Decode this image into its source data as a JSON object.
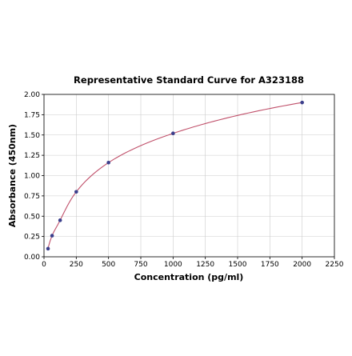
{
  "chart_data": {
    "type": "scatter",
    "title": "Representative Standard Curve for A323188",
    "xlabel": "Concentration (pg/ml)",
    "ylabel": "Absorbance (450nm)",
    "xlim": [
      0,
      2250
    ],
    "ylim": [
      0,
      2.0
    ],
    "xticks": [
      "0",
      "250",
      "500",
      "750",
      "1000",
      "1250",
      "1500",
      "1750",
      "2000",
      "2250"
    ],
    "yticks": [
      "0.00",
      "0.25",
      "0.50",
      "0.75",
      "1.00",
      "1.25",
      "1.50",
      "1.75",
      "2.00"
    ],
    "grid": true,
    "series": [
      {
        "x": [
          31.25,
          62.5,
          125,
          250,
          500,
          1000,
          2000
        ],
        "y": [
          0.1,
          0.26,
          0.45,
          0.8,
          1.16,
          1.52,
          1.9
        ],
        "point_color": "#3b3f8c"
      }
    ],
    "fit_curve": {
      "color": "#c0506a"
    }
  }
}
